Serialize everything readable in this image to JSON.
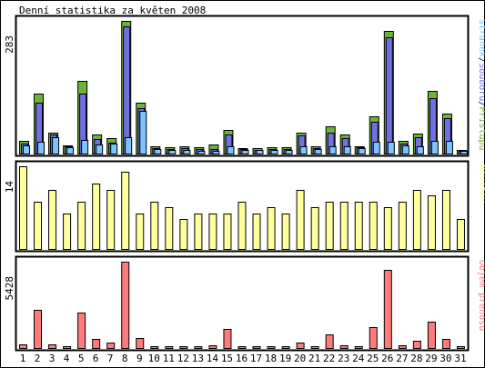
{
  "title": "Denní statistika za květen 2008",
  "colors": {
    "background": "#ffffff",
    "border": "#000000",
    "hits": "#6bb33a",
    "files": "#7070e6",
    "pages": "#7cc4ff",
    "visits": "#ffff9c",
    "kbytes": "#ff7a7a",
    "weekday_label": "#000000",
    "weekend_label": "#6aa32a"
  },
  "chart_data": [
    {
      "type": "bar",
      "panel": "traffic",
      "ymax_label": "283",
      "ylim": [
        0,
        283
      ],
      "side_label": {
        "parts": [
          {
            "text": "Stránek",
            "color_key": "pages"
          },
          {
            "text": "/",
            "color_key": "border"
          },
          {
            "text": "Souborů",
            "color_key": "files"
          },
          {
            "text": "/",
            "color_key": "border"
          },
          {
            "text": "Přístupů",
            "color_key": "hits"
          }
        ]
      },
      "categories": [
        "1",
        "2",
        "3",
        "4",
        "5",
        "6",
        "7",
        "8",
        "9",
        "10",
        "11",
        "12",
        "13",
        "14",
        "15",
        "16",
        "17",
        "18",
        "19",
        "20",
        "21",
        "22",
        "23",
        "24",
        "25",
        "26",
        "27",
        "28",
        "29",
        "30",
        "31"
      ],
      "weekend_days": [
        "3",
        "4",
        "10",
        "11",
        "17",
        "18",
        "24",
        "25",
        "31"
      ],
      "series": [
        {
          "name": "Přístupů",
          "color_key": "hits",
          "values": [
            28,
            128,
            45,
            18,
            155,
            40,
            33,
            283,
            108,
            16,
            14,
            16,
            14,
            19,
            51,
            11,
            11,
            14,
            14,
            45,
            15,
            58,
            40,
            16,
            79,
            262,
            28,
            42,
            134,
            85,
            8
          ]
        },
        {
          "name": "Souborů",
          "color_key": "files",
          "values": [
            22,
            109,
            40,
            16,
            127,
            31,
            24,
            272,
            96,
            11,
            10,
            11,
            10,
            10,
            41,
            9,
            8,
            10,
            10,
            38,
            12,
            45,
            33,
            13,
            67,
            248,
            22,
            34,
            118,
            75,
            6
          ]
        },
        {
          "name": "Stránek",
          "color_key": "pages",
          "values": [
            18,
            25,
            35,
            13,
            30,
            20,
            21,
            35,
            92,
            9,
            7,
            8,
            6,
            6,
            16,
            7,
            7,
            7,
            7,
            15,
            9,
            16,
            15,
            11,
            26,
            25,
            17,
            16,
            28,
            27,
            5
          ]
        }
      ]
    },
    {
      "type": "bar",
      "panel": "visits",
      "ymax_label": "14",
      "ylim": [
        0,
        14
      ],
      "side_label": {
        "parts": [
          {
            "text": "Návštěv",
            "color_key": "visits"
          }
        ]
      },
      "categories": [
        "1",
        "2",
        "3",
        "4",
        "5",
        "6",
        "7",
        "8",
        "9",
        "10",
        "11",
        "12",
        "13",
        "14",
        "15",
        "16",
        "17",
        "18",
        "19",
        "20",
        "21",
        "22",
        "23",
        "24",
        "25",
        "26",
        "27",
        "28",
        "29",
        "30",
        "31"
      ],
      "series": [
        {
          "name": "Návštěv",
          "color_key": "visits",
          "values": [
            14,
            8,
            10,
            6,
            8,
            11,
            10,
            13,
            6,
            8,
            7,
            5,
            6,
            6,
            6,
            8,
            6,
            7,
            6,
            10,
            7,
            8,
            8,
            8,
            8,
            7,
            8,
            10,
            9,
            10,
            5
          ]
        }
      ]
    },
    {
      "type": "bar",
      "panel": "kbytes",
      "ymax_label": "5428",
      "ylim": [
        0,
        5428
      ],
      "side_label": {
        "parts": [
          {
            "text": "Objem přenosu",
            "color_key": "kbytes"
          }
        ]
      },
      "categories": [
        "1",
        "2",
        "3",
        "4",
        "5",
        "6",
        "7",
        "8",
        "9",
        "10",
        "11",
        "12",
        "13",
        "14",
        "15",
        "16",
        "17",
        "18",
        "19",
        "20",
        "21",
        "22",
        "23",
        "24",
        "25",
        "26",
        "27",
        "28",
        "29",
        "30",
        "31"
      ],
      "series": [
        {
          "name": "Objem přenosu",
          "color_key": "kbytes",
          "values": [
            220,
            2380,
            210,
            140,
            2200,
            560,
            330,
            5428,
            640,
            60,
            40,
            50,
            40,
            160,
            1220,
            40,
            40,
            40,
            40,
            370,
            140,
            880,
            180,
            100,
            1320,
            4900,
            180,
            450,
            1670,
            590,
            40
          ]
        }
      ]
    }
  ]
}
